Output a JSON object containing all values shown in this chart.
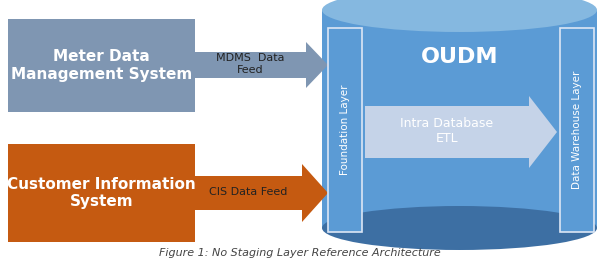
{
  "bg_color": "#ffffff",
  "cylinder_color": "#5b9bd5",
  "cylinder_dark": "#3d6fa3",
  "cylinder_top_color": "#85b8e0",
  "box_mdms_color": "#7f96b2",
  "box_cis_color": "#c55a11",
  "arrow_mdms_color": "#7f96b2",
  "arrow_cis_color": "#c55a11",
  "intra_arrow_color": "#c5d3e8",
  "layer_box_outline": "#dce6f5",
  "layer_box_fill": "#5b9bd5",
  "mdms_label": "Meter Data\nManagement System",
  "cis_label": "Customer Information\nSystem",
  "mdms_feed_label": "MDMS  Data\nFeed",
  "cis_feed_label": "CIS Data Feed",
  "oudm_label": "OUDM",
  "foundation_label": "Foundation Layer",
  "dw_label": "Data Warehouse Layer",
  "intra_label": "Intra Database\nETL",
  "title": "Figure 1: No Staging Layer Reference Architecture",
  "title_fontsize": 8,
  "mdms_fontsize": 11,
  "cis_fontsize": 11,
  "feed_fontsize": 8,
  "oudm_fontsize": 16,
  "layer_fontsize": 7.5,
  "intra_fontsize": 9
}
